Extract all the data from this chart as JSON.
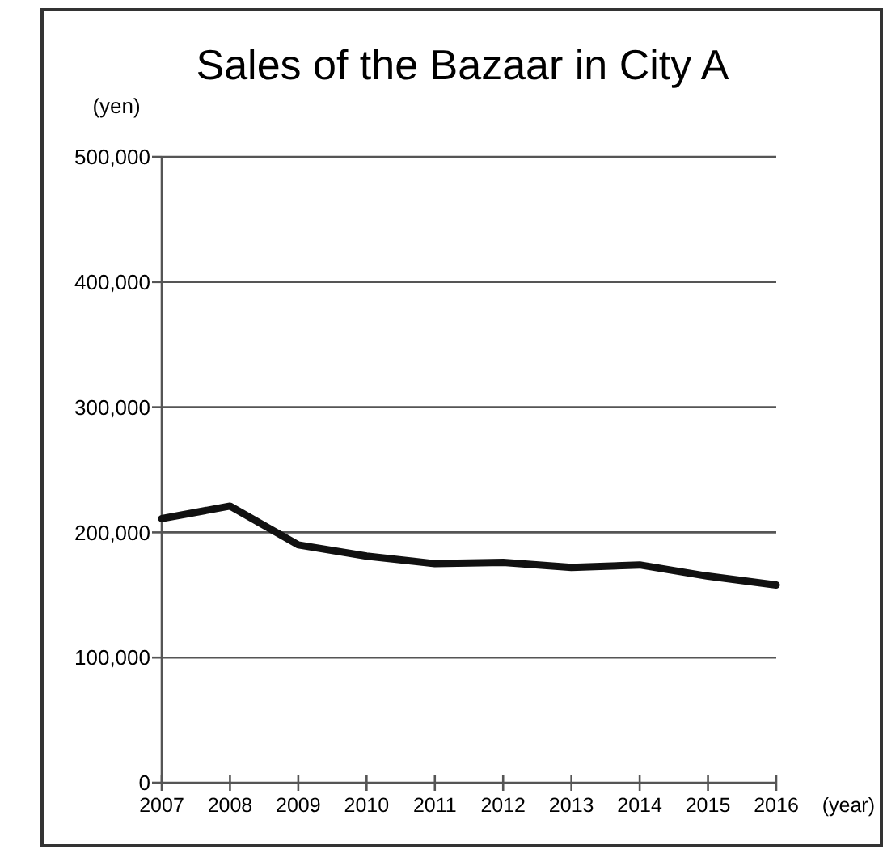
{
  "chart_data": {
    "type": "line",
    "title": "Sales of the Bazaar in City A",
    "xlabel": "(year)",
    "ylabel": "(yen)",
    "x": [
      2007,
      2008,
      2009,
      2010,
      2011,
      2012,
      2013,
      2014,
      2015,
      2016
    ],
    "series": [
      {
        "color": "#111111",
        "values": [
          211000,
          221000,
          190000,
          181000,
          175000,
          176000,
          172000,
          174000,
          165000,
          158000
        ]
      }
    ],
    "xlim": [
      2007,
      2016
    ],
    "xticks": [
      2007,
      2008,
      2009,
      2010,
      2011,
      2012,
      2013,
      2014,
      2015,
      2016
    ],
    "ylim": [
      0,
      500000
    ],
    "yticks": [
      0,
      {
        "value": 100000,
        "label": "100,000"
      },
      {
        "value": 200000,
        "label": "200,000"
      },
      {
        "value": 300000,
        "label": "300,000"
      },
      {
        "value": 400000,
        "label": "400,000"
      },
      {
        "value": 500000,
        "label": "500,000"
      }
    ],
    "grid": "y",
    "marker": "none",
    "line_style": "solid"
  }
}
